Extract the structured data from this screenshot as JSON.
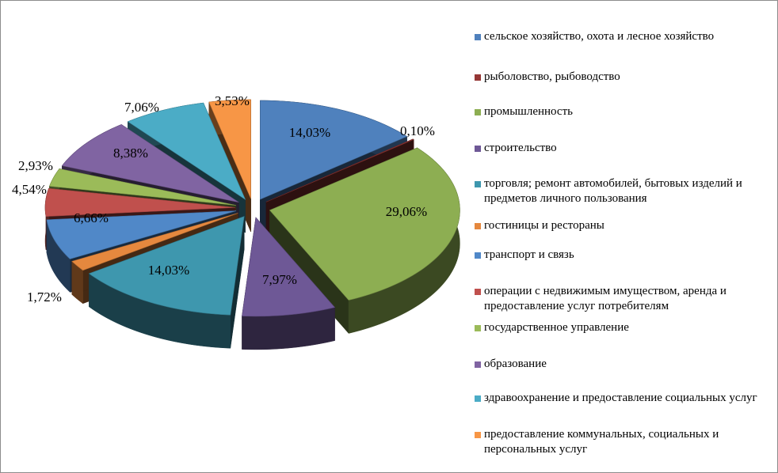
{
  "chart_data": {
    "type": "pie",
    "variant": "3d-exploded",
    "title": "",
    "unit": "%",
    "legend_position": "right",
    "categories": [
      "сельское хозяйство, охота и лесное хозяйство",
      "рыболовство, рыбоводство",
      "промышленность",
      "строительство",
      "торговля; ремонт автомобилей, бытовых изделий и предметов личного пользования",
      "гостиницы  и рестораны",
      "транспорт  и связь",
      "операции  с недвижимым имуществом, аренда и предоставление услуг потребителям",
      "государственное управление",
      "образование",
      "здравоохранение и предоставление социальных услуг",
      "предоставление коммунальных,  социальных  и персональных  услуг"
    ],
    "values": [
      14.03,
      0.1,
      29.06,
      7.97,
      14.03,
      1.72,
      6.66,
      4.54,
      2.93,
      8.38,
      7.06,
      3.53
    ],
    "labels": [
      "14,03%",
      "0,10%",
      "29,06%",
      "7,97%",
      "14,03%",
      "1,72%",
      "6,66%",
      "4,54%",
      "2,93%",
      "8,38%",
      "7,06%",
      "3,53%"
    ],
    "colors": [
      "#4F81BD",
      "#953735",
      "#8DAE52",
      "#6E5896",
      "#3E97AE",
      "#E5883E",
      "#5088C8",
      "#C0504D",
      "#9BBB59",
      "#8064A2",
      "#4BACC6",
      "#F79646"
    ]
  }
}
